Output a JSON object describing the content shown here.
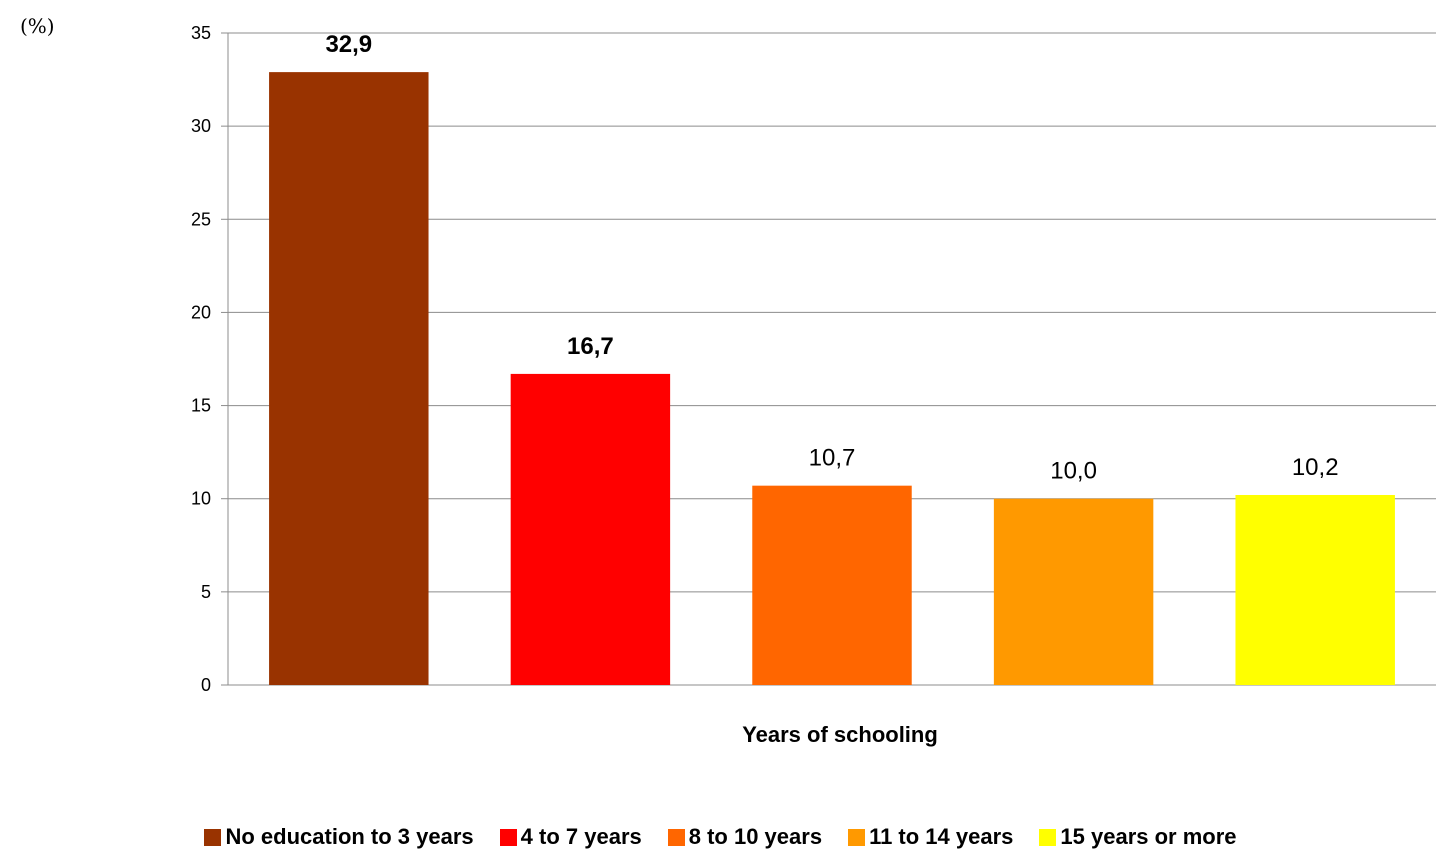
{
  "chart_data": {
    "type": "bar",
    "unit_label": "(%)",
    "xlabel": "Years of schooling",
    "ylabel": "",
    "ylim": [
      0,
      35
    ],
    "yticks": [
      0,
      5,
      10,
      15,
      20,
      25,
      30,
      35
    ],
    "grid": true,
    "legend_position": "bottom",
    "categories": [
      "No education to 3 years",
      "4 to 7 years",
      "8 to 10 years",
      "11 to 14 years",
      "15 years or more"
    ],
    "values": [
      32.9,
      16.7,
      10.7,
      10.0,
      10.2
    ],
    "data_labels": [
      "32,9",
      "16,7",
      "10,7",
      "10,0",
      "10,2"
    ],
    "data_label_bold": [
      true,
      true,
      false,
      false,
      false
    ],
    "colors": [
      "#993300",
      "#ff0000",
      "#ff6600",
      "#ff9900",
      "#ffff00"
    ]
  }
}
